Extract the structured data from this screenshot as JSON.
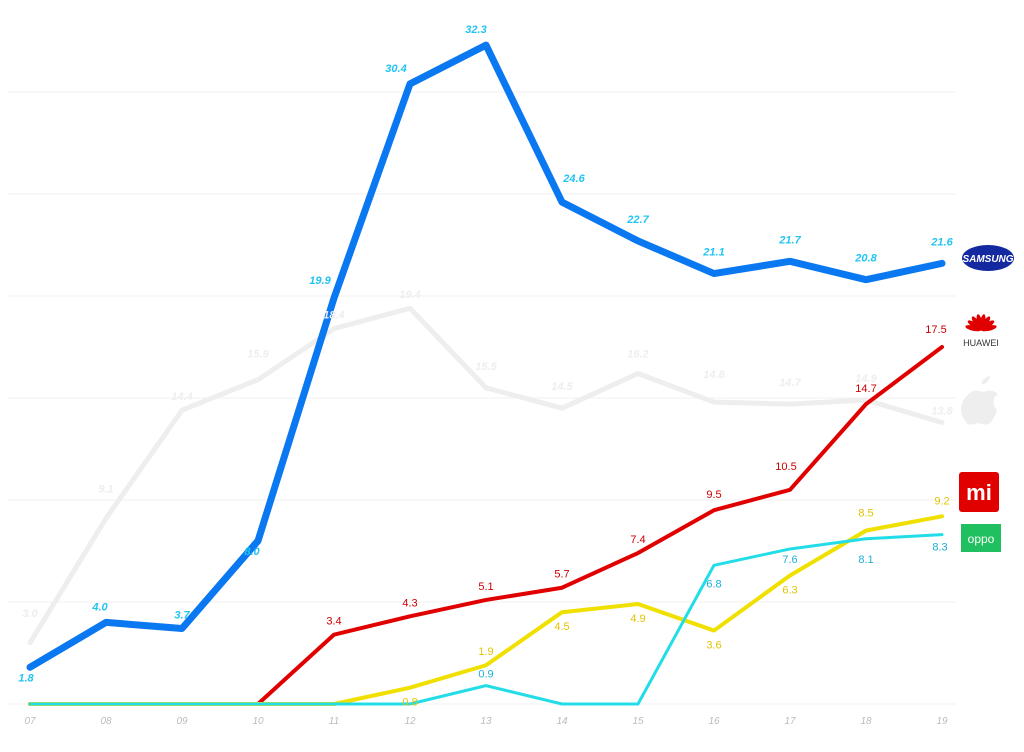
{
  "chart_data": {
    "type": "line",
    "title": "",
    "xlabel": "",
    "ylabel": "",
    "x": [
      "07",
      "08",
      "09",
      "10",
      "11",
      "12",
      "13",
      "14",
      "15",
      "16",
      "17",
      "18",
      "19"
    ],
    "ylim": [
      0,
      34
    ],
    "grid": true,
    "series": [
      {
        "key": "apple",
        "values": [
          3.0,
          9.1,
          14.4,
          15.9,
          18.4,
          19.4,
          15.5,
          14.5,
          16.2,
          14.8,
          14.7,
          14.9,
          13.8
        ],
        "labels": [
          "3.0",
          "9.1",
          "14.4",
          "15.9",
          "18.4",
          "19.4",
          "15.5",
          "14.5",
          "16.2",
          "14.8",
          "14.7",
          "14.9",
          "13.8"
        ],
        "color": "#eeeeee"
      },
      {
        "key": "samsung",
        "values": [
          1.8,
          4.0,
          3.7,
          8.0,
          19.9,
          30.4,
          32.3,
          24.6,
          22.7,
          21.1,
          21.7,
          20.8,
          21.6
        ],
        "labels": [
          "1.8",
          "4.0",
          "3.7",
          "8.0",
          "19.9",
          "30.4",
          "32.3",
          "24.6",
          "22.7",
          "21.1",
          "21.7",
          "20.8",
          "21.6"
        ],
        "color": "#0a78f0"
      },
      {
        "key": "huawei",
        "values": [
          0,
          0,
          0,
          0,
          3.4,
          4.3,
          5.1,
          5.7,
          7.4,
          9.5,
          10.5,
          14.7,
          17.5
        ],
        "labels": [
          "",
          "",
          "",
          "",
          "3.4",
          "4.3",
          "5.1",
          "5.7",
          "7.4",
          "9.5",
          "10.5",
          "14.7",
          "17.5"
        ],
        "color": "#e00000"
      },
      {
        "key": "xiaomi",
        "values": [
          0,
          0,
          0,
          0,
          0,
          0.8,
          1.9,
          4.5,
          4.9,
          3.6,
          6.3,
          8.5,
          9.2
        ],
        "labels": [
          "",
          "",
          "",
          "",
          "",
          "0.8",
          "1.9",
          "4.5",
          "4.9",
          "3.6",
          "6.3",
          "8.5",
          "9.2"
        ],
        "color": "#f0e000"
      },
      {
        "key": "oppo",
        "values": [
          0,
          0,
          0,
          0,
          0,
          0,
          0.9,
          0,
          0,
          6.8,
          7.6,
          8.1,
          8.3
        ],
        "labels": [
          "",
          "",
          "",
          "",
          "",
          "",
          "0.9",
          "",
          "",
          "6.8",
          "7.6",
          "8.1",
          "8.3"
        ],
        "color": "#22dde8"
      }
    ]
  },
  "legend": {
    "samsung_text": "SAMSUNG",
    "huawei_text": "HUAWEI",
    "xiaomi_text": "mi",
    "oppo_text": "oppo",
    "samsung_color": "#1428a0",
    "huawei_color": "#e00000",
    "xiaomi_color": "#e00000",
    "oppo_color": "#20c060",
    "apple_color": "#eeeeee"
  }
}
